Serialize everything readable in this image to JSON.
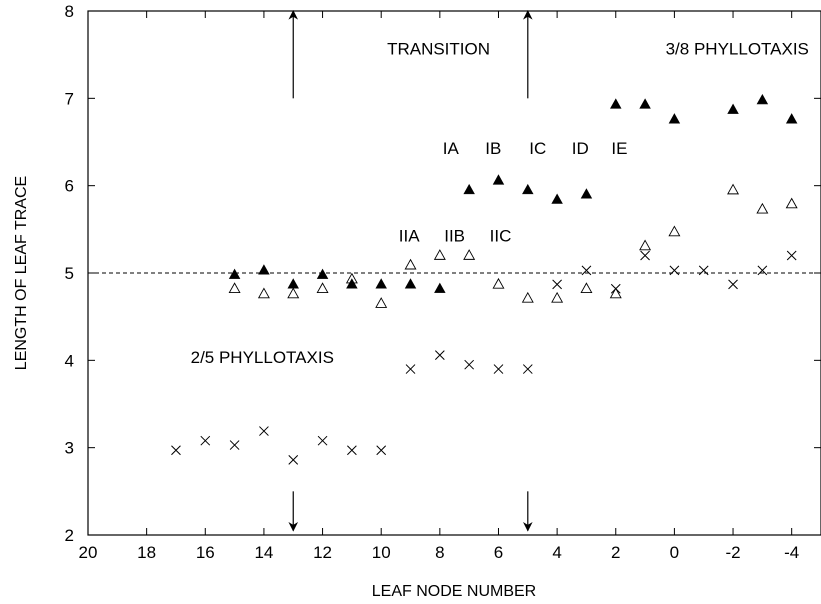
{
  "chart_data": {
    "type": "scatter",
    "title": "",
    "xlabel": "LEAF NODE NUMBER",
    "ylabel": "LENGTH OF LEAF TRACE",
    "xlim": [
      20,
      -5
    ],
    "ylim": [
      2,
      8
    ],
    "x_reversed": true,
    "x_ticks": [
      20,
      18,
      16,
      14,
      12,
      10,
      8,
      6,
      4,
      2,
      0,
      -2,
      -4
    ],
    "x_tick_labels": [
      "20",
      "18",
      "16",
      "14",
      "12",
      "10",
      "8",
      "6",
      "4",
      "2",
      "0",
      "-2",
      "-4"
    ],
    "y_ticks": [
      2,
      3,
      4,
      5,
      6,
      7,
      8
    ],
    "y_tick_labels": [
      "2",
      "3",
      "4",
      "5",
      "6",
      "7",
      "8"
    ],
    "grid": false,
    "reference_line": {
      "y": 5,
      "style": "dashed"
    },
    "series": [
      {
        "marker": "filled-triangle",
        "points": [
          [
            15,
            4.98
          ],
          [
            14,
            5.03
          ],
          [
            13,
            4.87
          ],
          [
            12,
            4.98
          ],
          [
            11,
            4.87
          ],
          [
            10,
            4.87
          ],
          [
            9,
            4.87
          ],
          [
            8,
            4.82
          ],
          [
            7,
            5.95
          ],
          [
            6,
            6.06
          ],
          [
            5,
            5.95
          ],
          [
            4,
            5.84
          ],
          [
            3,
            5.9
          ],
          [
            2,
            6.93
          ],
          [
            1,
            6.93
          ],
          [
            0,
            6.76
          ],
          [
            -2,
            6.87
          ],
          [
            -3,
            6.98
          ],
          [
            -4,
            6.76
          ]
        ]
      },
      {
        "marker": "open-triangle",
        "points": [
          [
            15,
            4.82
          ],
          [
            14,
            4.76
          ],
          [
            13,
            4.76
          ],
          [
            12,
            4.82
          ],
          [
            11,
            4.93
          ],
          [
            10,
            4.65
          ],
          [
            9,
            5.09
          ],
          [
            8,
            5.2
          ],
          [
            7,
            5.2
          ],
          [
            6,
            4.87
          ],
          [
            5,
            4.71
          ],
          [
            4,
            4.71
          ],
          [
            3,
            4.82
          ],
          [
            2,
            4.76
          ],
          [
            1,
            5.31
          ],
          [
            0,
            5.47
          ],
          [
            -2,
            5.95
          ],
          [
            -3,
            5.73
          ],
          [
            -4,
            5.79
          ]
        ]
      },
      {
        "marker": "cross",
        "points": [
          [
            17,
            2.97
          ],
          [
            16,
            3.08
          ],
          [
            15,
            3.03
          ],
          [
            14,
            3.19
          ],
          [
            13,
            2.86
          ],
          [
            12,
            3.08
          ],
          [
            11,
            2.97
          ],
          [
            10,
            2.97
          ],
          [
            9,
            3.9
          ],
          [
            8,
            4.06
          ],
          [
            7,
            3.95
          ],
          [
            6,
            3.9
          ],
          [
            5,
            3.9
          ],
          [
            4,
            4.87
          ],
          [
            3,
            5.03
          ],
          [
            2,
            4.82
          ],
          [
            1,
            5.2
          ],
          [
            0,
            5.03
          ],
          [
            -1,
            5.03
          ],
          [
            -2,
            4.87
          ],
          [
            -3,
            5.03
          ],
          [
            -4,
            5.2
          ]
        ]
      }
    ],
    "annotations": [
      {
        "text": "TRANSITION",
        "x": 9.8,
        "y": 7.5
      },
      {
        "text": "3/8 PHYLLOTAXIS",
        "x": 0.3,
        "y": 7.5
      },
      {
        "text": "2/5 PHYLLOTAXIS",
        "x": 16.5,
        "y": 3.97
      },
      {
        "text": "IA",
        "x": 7.9,
        "y": 6.36
      },
      {
        "text": "IB",
        "x": 6.45,
        "y": 6.36
      },
      {
        "text": "IC",
        "x": 4.95,
        "y": 6.36
      },
      {
        "text": "ID",
        "x": 3.5,
        "y": 6.36
      },
      {
        "text": "IE",
        "x": 2.15,
        "y": 6.36
      },
      {
        "text": "IIA",
        "x": 9.4,
        "y": 5.36
      },
      {
        "text": "IIB",
        "x": 7.85,
        "y": 5.36
      },
      {
        "text": "IIC",
        "x": 6.3,
        "y": 5.36
      }
    ],
    "arrows": [
      {
        "x": 13,
        "from": 7.0,
        "to": 8.0
      },
      {
        "x": 5,
        "from": 7.0,
        "to": 8.0
      },
      {
        "x": 13,
        "from": 2.5,
        "to": 2.05
      },
      {
        "x": 5,
        "from": 2.5,
        "to": 2.05
      }
    ]
  }
}
